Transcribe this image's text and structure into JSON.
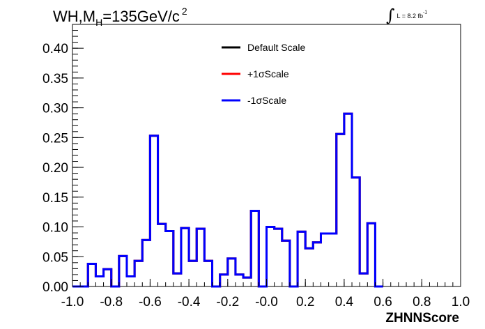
{
  "chart_data": {
    "type": "histogram",
    "title": {
      "main": "WH,M",
      "subscript": "H",
      "after": "=135GeV/c",
      "superscript": "2"
    },
    "luminosity": {
      "symbol": "∫",
      "text": "L = 8.2 fb",
      "superscript": "-1"
    },
    "xlabel": "ZHNNScore",
    "ylabel": "",
    "xlim": [
      -1.0,
      1.0
    ],
    "ylim": [
      0.0,
      0.44
    ],
    "xticks": [
      "-1.0",
      "-0.8",
      "-0.6",
      "-0.4",
      "-0.2",
      "-0.0",
      "0.2",
      "0.4",
      "0.6",
      "0.8",
      "1.0"
    ],
    "yticks": [
      "0.00",
      "0.05",
      "0.10",
      "0.15",
      "0.20",
      "0.25",
      "0.30",
      "0.35",
      "0.40"
    ],
    "bin_edges_start": -1.0,
    "bin_width": 0.04,
    "series": [
      {
        "name": "Default Scale",
        "color": "#000000",
        "values": [
          0.0,
          0.0,
          0.038,
          0.017,
          0.029,
          0.0,
          0.051,
          0.017,
          0.043,
          0.078,
          0.253,
          0.105,
          0.093,
          0.022,
          0.098,
          0.043,
          0.097,
          0.043,
          0.0,
          0.02,
          0.047,
          0.02,
          0.015,
          0.127,
          0.0,
          0.1,
          0.097,
          0.077,
          0.0,
          0.092,
          0.064,
          0.074,
          0.089,
          0.089,
          0.256,
          0.29,
          0.183,
          0.022,
          0.106,
          0.0
        ]
      },
      {
        "name": "+1σScale",
        "color": "#ff0000",
        "values": [
          0.0,
          0.0,
          0.038,
          0.017,
          0.029,
          0.0,
          0.051,
          0.017,
          0.043,
          0.078,
          0.253,
          0.105,
          0.093,
          0.022,
          0.098,
          0.043,
          0.097,
          0.043,
          0.0,
          0.02,
          0.047,
          0.02,
          0.015,
          0.127,
          0.0,
          0.1,
          0.097,
          0.077,
          0.0,
          0.092,
          0.064,
          0.074,
          0.089,
          0.089,
          0.256,
          0.29,
          0.183,
          0.022,
          0.106,
          0.0
        ]
      },
      {
        "name": "-1σScale",
        "color": "#0000ff",
        "values": [
          0.0,
          0.0,
          0.038,
          0.017,
          0.029,
          0.0,
          0.051,
          0.017,
          0.043,
          0.078,
          0.253,
          0.105,
          0.093,
          0.022,
          0.098,
          0.043,
          0.097,
          0.043,
          0.0,
          0.02,
          0.047,
          0.02,
          0.015,
          0.127,
          0.0,
          0.1,
          0.097,
          0.077,
          0.0,
          0.092,
          0.064,
          0.074,
          0.089,
          0.089,
          0.256,
          0.29,
          0.183,
          0.022,
          0.106,
          0.0
        ]
      }
    ],
    "legend": "top-center",
    "grid": false
  }
}
